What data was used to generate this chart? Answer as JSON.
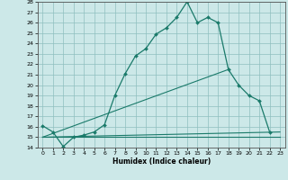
{
  "xlabel": "Humidex (Indice chaleur)",
  "bg_color": "#cce8e8",
  "grid_color": "#8fbfbf",
  "line_color": "#1a7a6a",
  "xlim": [
    -0.5,
    23.5
  ],
  "ylim": [
    14,
    28
  ],
  "yticks": [
    14,
    15,
    16,
    17,
    18,
    19,
    20,
    21,
    22,
    23,
    24,
    25,
    26,
    27,
    28
  ],
  "xticks": [
    0,
    1,
    2,
    3,
    4,
    5,
    6,
    7,
    8,
    9,
    10,
    11,
    12,
    13,
    14,
    15,
    16,
    17,
    18,
    19,
    20,
    21,
    22,
    23
  ],
  "series1_x": [
    0,
    1,
    2,
    3,
    4,
    5,
    6,
    7,
    8,
    9,
    10,
    11,
    12,
    13,
    14,
    15,
    16,
    17,
    18,
    19,
    20,
    21,
    22,
    23
  ],
  "series1_y": [
    16.1,
    15.5,
    14.1,
    15.0,
    15.2,
    15.5,
    16.2,
    19.0,
    21.1,
    22.8,
    23.5,
    24.9,
    25.5,
    26.5,
    28.0,
    26.0,
    26.5,
    26.0,
    21.5,
    20.0,
    19.0,
    18.5,
    15.5,
    null
  ],
  "series2_x": [
    0,
    1,
    2,
    3,
    4,
    5,
    6,
    7,
    8,
    9,
    10,
    11,
    12,
    13,
    14,
    15,
    16,
    17,
    18,
    19,
    20,
    21,
    22,
    23
  ],
  "series2_y": [
    15.0,
    null,
    null,
    null,
    null,
    null,
    null,
    null,
    null,
    null,
    null,
    null,
    null,
    null,
    null,
    15.0,
    15.0,
    15.0,
    15.0,
    15.0,
    15.0,
    15.0,
    15.0,
    15.0
  ],
  "series3_x": [
    0,
    18
  ],
  "series3_y": [
    15.0,
    21.5
  ],
  "series4_x": [
    0,
    23
  ],
  "series4_y": [
    15.0,
    15.5
  ]
}
